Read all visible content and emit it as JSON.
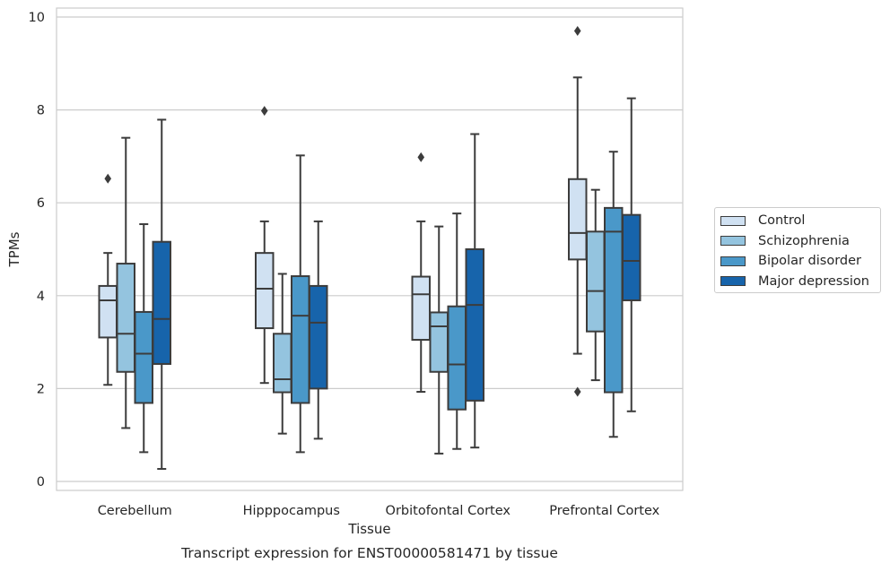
{
  "chart_data": {
    "type": "box",
    "title": "Transcript expression for ENST00000581471 by tissue",
    "xlabel": "Tissue",
    "ylabel": "TPMs",
    "ylim": [
      -0.2,
      10.2
    ],
    "yticks": [
      "0",
      "2",
      "4",
      "6",
      "8",
      "10"
    ],
    "ytick_values": [
      0,
      2,
      4,
      6,
      8,
      10
    ],
    "grid": true,
    "legend_placement": "right, outside plot",
    "categories": [
      "Cerebellum",
      "Hipppocampus",
      "Orbitofontal Cortex",
      "Prefrontal Cortex"
    ],
    "series": [
      {
        "name": "Control",
        "color": "#d0e1f2",
        "boxes": [
          {
            "whislo": 2.08,
            "q1": 3.1,
            "med": 3.9,
            "q3": 4.21,
            "whishi": 4.92,
            "fliers": [
              6.52
            ]
          },
          {
            "whislo": 2.12,
            "q1": 3.3,
            "med": 4.15,
            "q3": 4.92,
            "whishi": 5.6,
            "fliers": [
              7.98
            ]
          },
          {
            "whislo": 1.93,
            "q1": 3.05,
            "med": 4.03,
            "q3": 4.41,
            "whishi": 5.6,
            "fliers": [
              6.98
            ]
          },
          {
            "whislo": 2.75,
            "q1": 4.78,
            "med": 5.35,
            "q3": 6.51,
            "whishi": 8.7,
            "fliers": [
              9.7,
              1.93
            ]
          }
        ]
      },
      {
        "name": "Schizophrenia",
        "color": "#94c4df",
        "boxes": [
          {
            "whislo": 1.15,
            "q1": 2.36,
            "med": 3.18,
            "q3": 4.69,
            "whishi": 7.4,
            "fliers": []
          },
          {
            "whislo": 1.03,
            "q1": 1.92,
            "med": 2.2,
            "q3": 3.18,
            "whishi": 4.47,
            "fliers": []
          },
          {
            "whislo": 0.6,
            "q1": 2.36,
            "med": 3.34,
            "q3": 3.64,
            "whishi": 5.49,
            "fliers": []
          },
          {
            "whislo": 2.18,
            "q1": 3.23,
            "med": 4.1,
            "q3": 5.38,
            "whishi": 6.28,
            "fliers": []
          }
        ]
      },
      {
        "name": "Bipolar disorder",
        "color": "#4a98c9",
        "boxes": [
          {
            "whislo": 0.63,
            "q1": 1.69,
            "med": 2.75,
            "q3": 3.65,
            "whishi": 5.54,
            "fliers": []
          },
          {
            "whislo": 0.63,
            "q1": 1.69,
            "med": 3.57,
            "q3": 4.42,
            "whishi": 7.02,
            "fliers": []
          },
          {
            "whislo": 0.7,
            "q1": 1.55,
            "med": 2.52,
            "q3": 3.77,
            "whishi": 5.77,
            "fliers": []
          },
          {
            "whislo": 0.96,
            "q1": 1.92,
            "med": 5.38,
            "q3": 5.89,
            "whishi": 7.1,
            "fliers": []
          }
        ]
      },
      {
        "name": "Major depression",
        "color": "#1764ab",
        "boxes": [
          {
            "whislo": 0.27,
            "q1": 2.53,
            "med": 3.5,
            "q3": 5.16,
            "whishi": 7.79,
            "fliers": []
          },
          {
            "whislo": 0.92,
            "q1": 2.0,
            "med": 3.42,
            "q3": 4.21,
            "whishi": 5.6,
            "fliers": []
          },
          {
            "whislo": 0.73,
            "q1": 1.74,
            "med": 3.8,
            "q3": 5.0,
            "whishi": 7.48,
            "fliers": []
          },
          {
            "whislo": 1.51,
            "q1": 3.9,
            "med": 4.75,
            "q3": 5.74,
            "whishi": 8.25,
            "fliers": []
          }
        ]
      }
    ]
  }
}
